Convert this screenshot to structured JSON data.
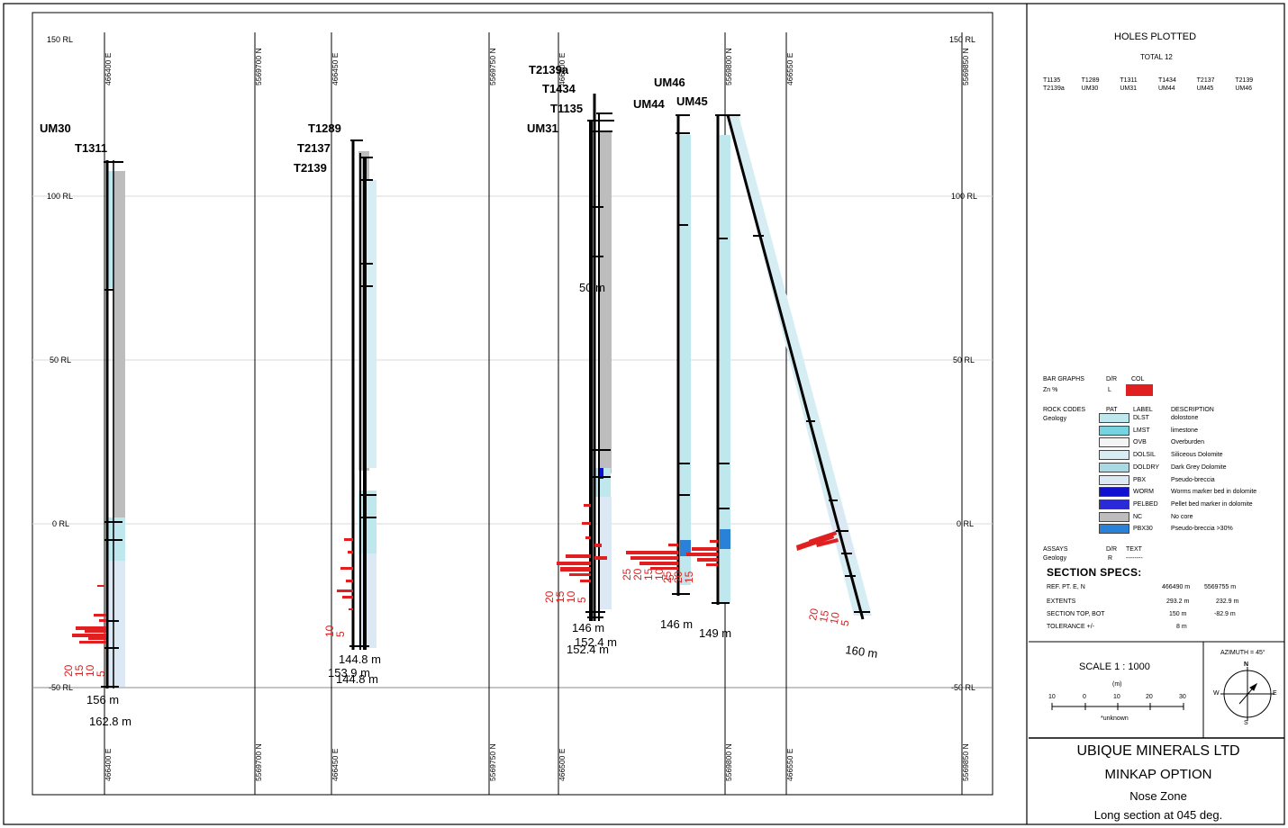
{
  "section": {
    "rl_labels": [
      {
        "value": 150,
        "text": "150 RL"
      },
      {
        "value": 100,
        "text": "100 RL"
      },
      {
        "value": 50,
        "text": "50 RL"
      },
      {
        "value": 0,
        "text": "0 RL"
      },
      {
        "value": -50,
        "text": "-50 RL"
      }
    ],
    "easting_labels": [
      "466400 E",
      "466450 E",
      "466500 E",
      "466550 E"
    ],
    "northing_labels": [
      "5569700 N",
      "5569750 N",
      "5569800 N",
      "5569850 N"
    ],
    "dup_northing_label": "5569800 N",
    "holes": [
      {
        "names": [
          "UM30",
          "T1311"
        ],
        "depths": [
          "156 m",
          "162.8 m"
        ]
      },
      {
        "names": [
          "T1289",
          "T2137",
          "T2139"
        ],
        "depths": [
          "144.8 m",
          "153.9 m",
          "144.8 m"
        ]
      },
      {
        "names": [
          "T2139a",
          "T1434",
          "T1135",
          "UM31"
        ],
        "depths": [
          "146 m",
          "152.4 m",
          "152.4 m"
        ],
        "mid": "50 m"
      },
      {
        "names": [
          "UM44",
          "UM46",
          "UM45"
        ],
        "depths": [
          "146 m",
          "149 m"
        ]
      },
      {
        "names": [],
        "depths": [
          "160 m"
        ]
      }
    ],
    "bar_scales": [
      {
        "ticks": [
          "20",
          "15",
          "10",
          "5"
        ]
      },
      {
        "ticks": [
          "10",
          "5"
        ]
      },
      {
        "ticks": [
          "20",
          "15",
          "10",
          "5"
        ]
      },
      {
        "ticks": [
          "25",
          "20",
          "15",
          "10",
          "5"
        ]
      },
      {
        "ticks": [
          "25",
          "20",
          "15"
        ]
      },
      {
        "ticks": [
          "20",
          "15",
          "10",
          "5"
        ]
      }
    ]
  },
  "legend": {
    "title": "HOLES PLOTTED",
    "total": "TOTAL 12",
    "holes": [
      "T1135",
      "T1289",
      "T1311",
      "T1434",
      "T2137",
      "T2139",
      "T2139a",
      "UM30",
      "UM31",
      "UM44",
      "UM45",
      "UM46"
    ],
    "bar_graphs": {
      "title": "BAR GRAPHS",
      "dr": "D/R",
      "col": "COL",
      "item": "Zn %",
      "item_dr": "L",
      "color": "#e02020"
    },
    "rock_codes": {
      "title": "ROCK CODES",
      "pat": "PAT",
      "label": "LABEL",
      "desc": "DESCRIPTION",
      "sub": "Geology",
      "items": [
        {
          "label": "DLST",
          "description": "dolostone",
          "color": "#bfe7ee"
        },
        {
          "label": "LMST",
          "description": "limestone",
          "color": "#78d3e0"
        },
        {
          "label": "OVB",
          "description": "Overburden",
          "color": "#f4f4f4"
        },
        {
          "label": "DOLSIL",
          "description": "Siliceous Dolomite",
          "color": "#d6eef3"
        },
        {
          "label": "DOLDRY",
          "description": "Dark Grey Dolomite",
          "color": "#a9d9e5"
        },
        {
          "label": "PBX",
          "description": "Pseudo-breccia",
          "color": "#dce8f4"
        },
        {
          "label": "WORM",
          "description": "Worms marker bed in dolomite",
          "color": "#1010d0"
        },
        {
          "label": "PELBED",
          "description": "Pellet bed marker in dolomite",
          "color": "#2a2ad8"
        },
        {
          "label": "NC",
          "description": "No core",
          "color": "#bdbdbd"
        },
        {
          "label": "PBX30",
          "description": "Pseudo-breccia >30%",
          "color": "#2a82d8"
        }
      ]
    },
    "assays": {
      "title": "ASSAYS",
      "dr": "D/R",
      "text": "TEXT",
      "sub": "Geology",
      "sub_dr": "R",
      "sub_text": "--------"
    }
  },
  "specs": {
    "title": "SECTION  SPECS:",
    "rows": [
      {
        "label": "REF. PT.  E, N",
        "v1": "466490 m",
        "v2": "5569755 m"
      },
      {
        "label": "EXTENTS",
        "v1": "293.2 m",
        "v2": "232.9 m"
      },
      {
        "label": "SECTION TOP, BOT",
        "v1": "150 m",
        "v2": "-82.9 m"
      },
      {
        "label": "TOLERANCE  +/-",
        "v1": "8 m",
        "v2": ""
      }
    ]
  },
  "scale": {
    "label": "SCALE   1 : 1000",
    "unit": "(m)",
    "ticks": [
      "10",
      "0",
      "10",
      "20",
      "30"
    ],
    "note": "*unknown"
  },
  "azimuth": {
    "label": "AZIMUTH = 45°",
    "n": "N",
    "s": "S",
    "e": "E",
    "w": "W"
  },
  "title_block": {
    "company": "UBIQUE MINERALS LTD",
    "project": "MINKAP OPTION",
    "zone": "Nose Zone",
    "subtitle": "Long section at 045 deg."
  },
  "colors": {
    "assay_bar": "#e02020",
    "frame": "#000000",
    "dlst": "#bfe7ee",
    "no_core": "#bdbdbd",
    "pbx30": "#2a82d8"
  }
}
